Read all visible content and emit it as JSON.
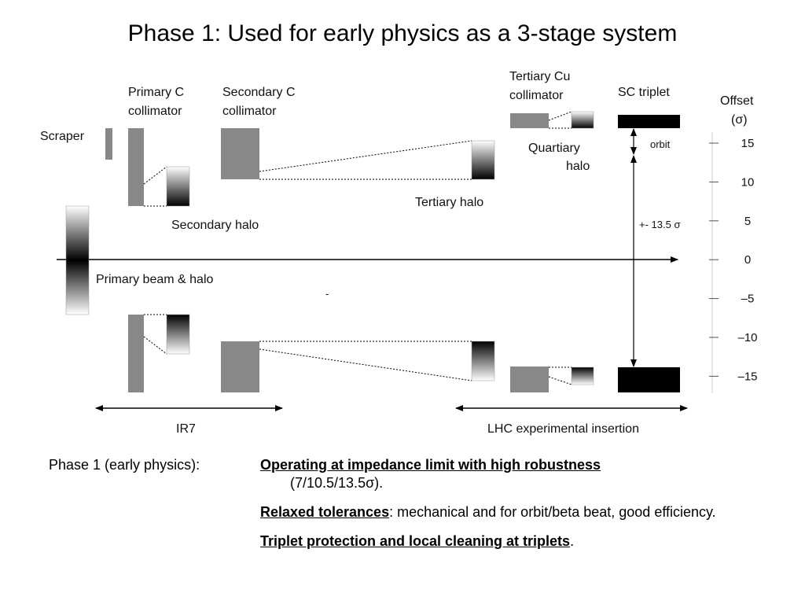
{
  "title": "Phase 1: Used for early physics as a 3-stage system",
  "diagram": {
    "labels": {
      "scraper": "Scraper",
      "primary_c_line1": "Primary C",
      "primary_c_line2": "collimator",
      "secondary_c_line1": "Secondary C",
      "secondary_c_line2": "collimator",
      "tertiary_cu_line1": "Tertiary Cu",
      "tertiary_cu_line2": "collimator",
      "sc_triplet": "SC triplet",
      "quartiary_line1": "Quartiary",
      "quartiary_line2": "halo",
      "orbit": "orbit",
      "tertiary_halo": "Tertiary halo",
      "secondary_halo": "Secondary halo",
      "primary_beam_halo": "Primary beam & halo",
      "aperture": "+- 13.5 σ",
      "ir7": "IR7",
      "lhc_insertion": "LHC experimental insertion",
      "dot": "-"
    },
    "offset_axis": {
      "title_line1": "Offset",
      "title_line2": "(σ)",
      "ticks": [
        "15",
        "10",
        "5",
        "0",
        "–5",
        "–10",
        "–15"
      ]
    }
  },
  "bottom": {
    "left_label": "Phase 1 (early physics):",
    "items": [
      {
        "bold": "Operating at impedance limit with high robustness",
        "rest": "",
        "indent": "(7/10.5/13.5σ)."
      },
      {
        "bold": "Relaxed tolerances",
        "rest": ": mechanical and for orbit/beta beat, good efficiency.",
        "indent": ""
      },
      {
        "bold": "Triplet protection and local cleaning at triplets",
        "rest": ".",
        "indent": ""
      }
    ]
  },
  "colors": {
    "collimator": "#888888",
    "triplet": "#000000",
    "gradient_dark": "#000000",
    "gradient_light": "#ffffff"
  }
}
